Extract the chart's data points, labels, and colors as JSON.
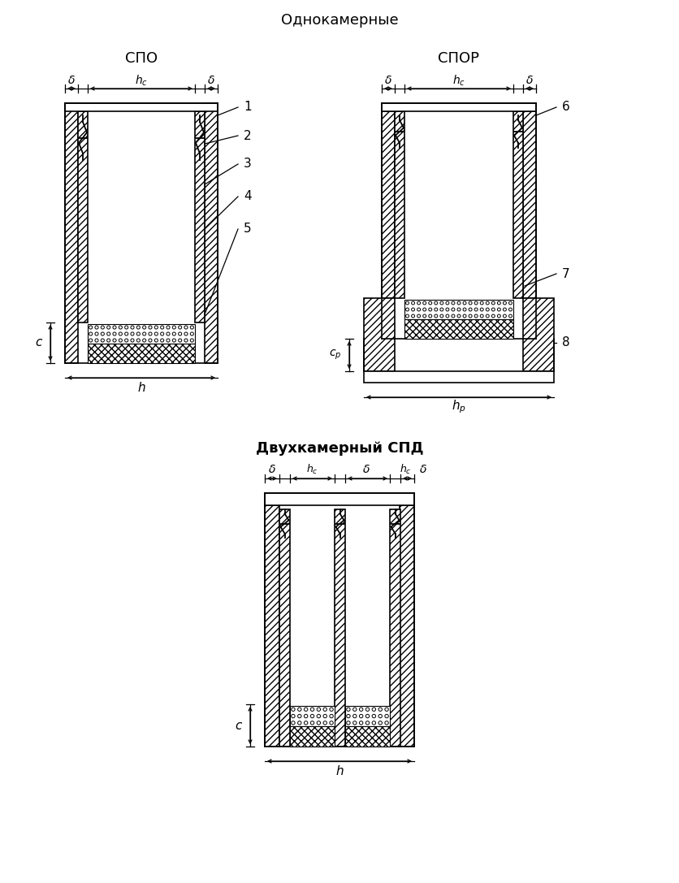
{
  "title_top": "Однокамерные",
  "title_bottom": "Двухкамерный СПД",
  "label_spo": "СПО",
  "label_spor": "СПОР",
  "bg_color": "#ffffff",
  "line_color": "#000000"
}
